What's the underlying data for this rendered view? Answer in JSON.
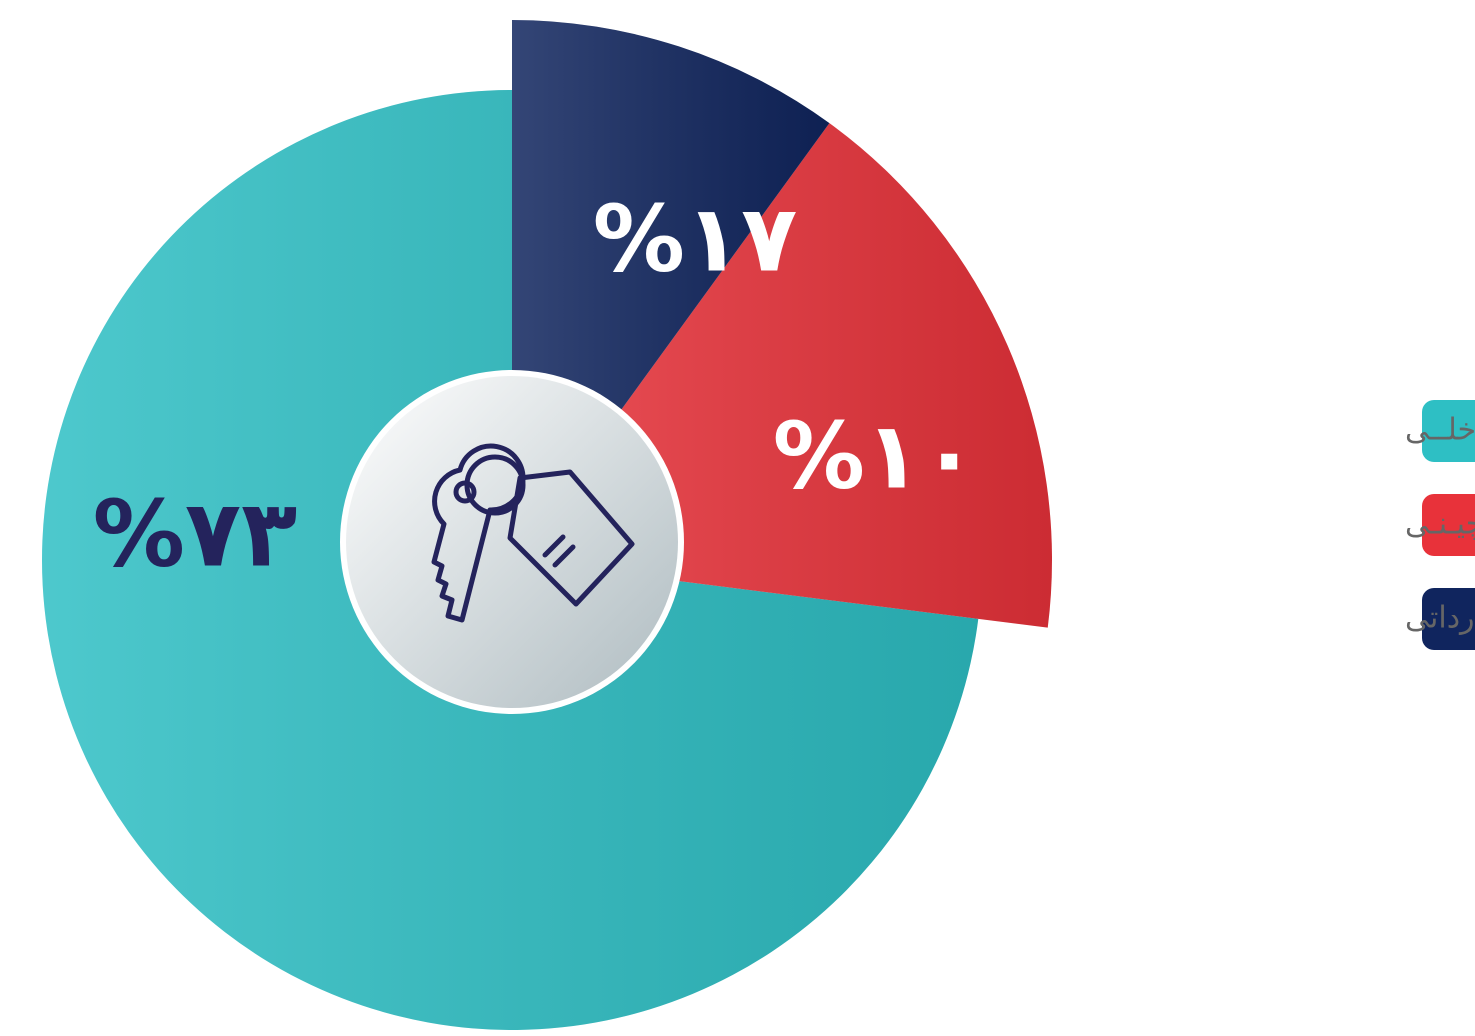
{
  "chart_data": {
    "type": "pie",
    "categories": [
      "خودروهای داخلــی",
      "خودروهای چیـنـی",
      "خودروهای وارداتی"
    ],
    "values": [
      73,
      17,
      10
    ],
    "value_labels": [
      "%۷۳",
      "%۱۷",
      "%۱۰"
    ],
    "colors": [
      "#2ebfc4",
      "#e8323a",
      "#10255e"
    ],
    "legend": "right"
  }
}
